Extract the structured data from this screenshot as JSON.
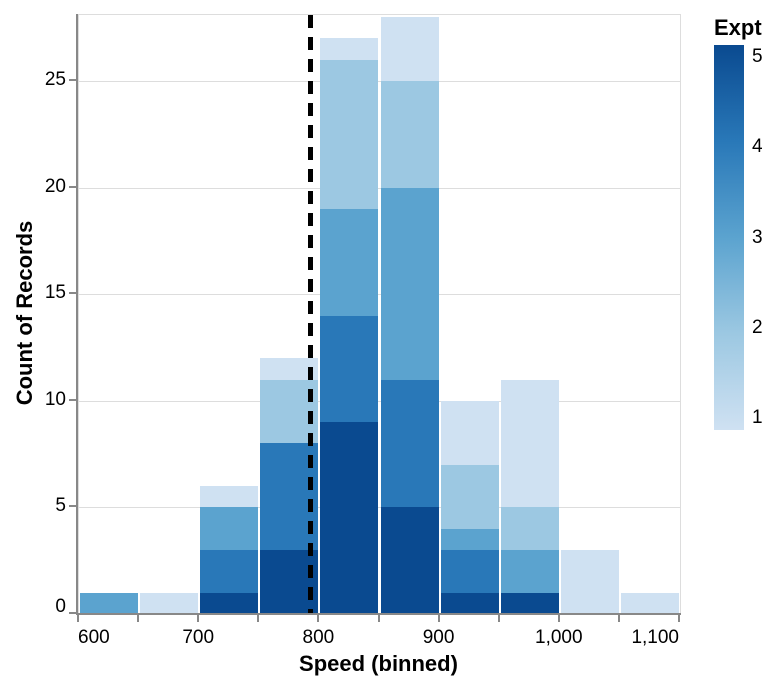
{
  "chart_data": {
    "type": "bar",
    "subtype": "stacked-histogram",
    "title": "",
    "xlabel": "Speed (binned)",
    "ylabel": "Count of Records",
    "xlim": [
      600,
      1100
    ],
    "ylim": [
      0,
      28.1
    ],
    "bin_step": 50,
    "categories": [
      600,
      650,
      700,
      750,
      800,
      850,
      900,
      950,
      1000,
      1050
    ],
    "series": [
      {
        "name": "5",
        "color": "#0a4a90",
        "values": [
          0,
          0,
          1,
          3,
          9,
          5,
          1,
          1,
          0,
          0
        ]
      },
      {
        "name": "4",
        "color": "#2978b8",
        "values": [
          0,
          0,
          2,
          5,
          5,
          6,
          2,
          0,
          0,
          0
        ]
      },
      {
        "name": "3",
        "color": "#5ba3cf",
        "values": [
          1,
          0,
          2,
          0,
          5,
          9,
          1,
          2,
          0,
          0
        ]
      },
      {
        "name": "2",
        "color": "#9cc8e2",
        "values": [
          0,
          0,
          0,
          3,
          7,
          5,
          3,
          2,
          0,
          0
        ]
      },
      {
        "name": "1",
        "color": "#cfe1f2",
        "values": [
          0,
          1,
          1,
          1,
          1,
          3,
          3,
          6,
          3,
          1
        ]
      }
    ],
    "stack_bottom_to_top": [
      "5",
      "4",
      "3",
      "2",
      "1"
    ],
    "bin_totals": [
      1,
      1,
      6,
      12,
      27,
      28,
      10,
      11,
      3,
      1
    ],
    "x_ticks_minor_step": 50,
    "x_tick_labeled_values": [
      600,
      700,
      800,
      900,
      1000,
      1100
    ],
    "x_tick_labels": [
      "600",
      "700",
      "800",
      "900",
      "1,000",
      "1,100"
    ],
    "y_ticks": [
      0,
      5,
      10,
      15,
      20,
      25
    ],
    "y_tick_labels": [
      "0",
      "5",
      "10",
      "15",
      "20",
      "25"
    ],
    "rule": {
      "x": 792.458,
      "color": "#000000",
      "style": "dashed"
    },
    "grid": "horizontal-only",
    "frame_color": "#dddddd",
    "axis_color": "#888888",
    "legend": {
      "title": "Expt",
      "position": "right",
      "orientation": "vertical-gradient",
      "labels_top_to_bottom": [
        "5",
        "4",
        "3",
        "2",
        "1"
      ],
      "gradient_top_color": "#0a4a90",
      "gradient_bottom_color": "#cfe1f2",
      "gradient_stops_top_to_bottom": [
        "#0a4a90",
        "#2978b8",
        "#5ba3cf",
        "#9cc8e2",
        "#cfe1f2"
      ]
    }
  }
}
